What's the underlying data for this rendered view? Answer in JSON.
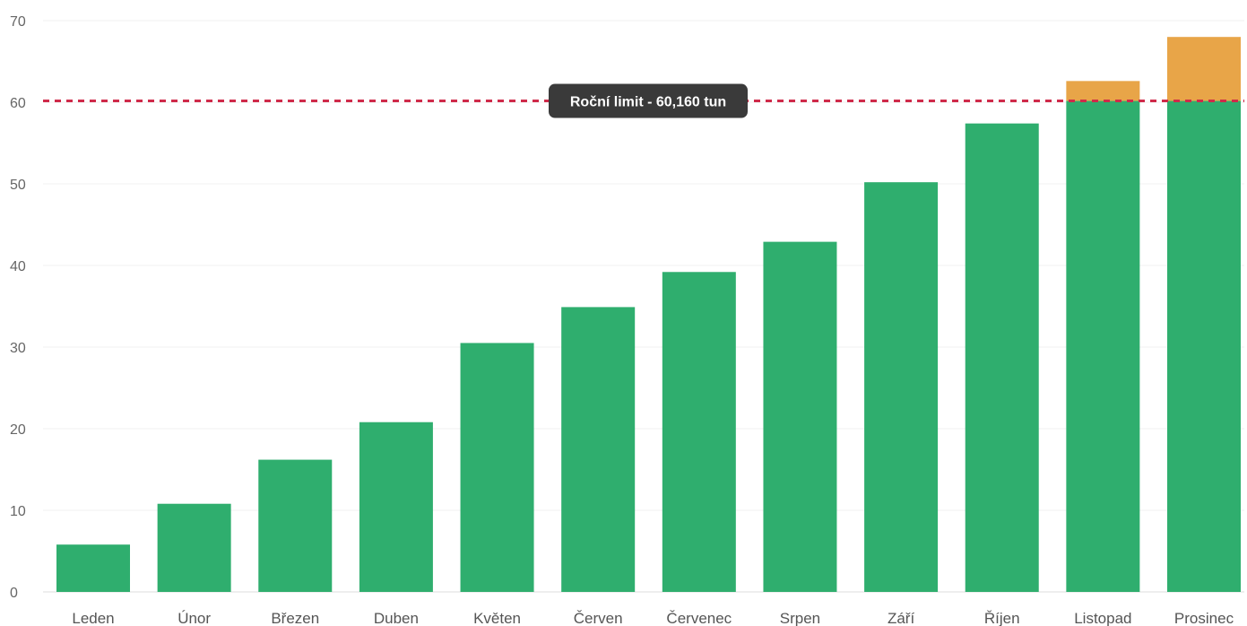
{
  "chart_data": {
    "type": "bar",
    "stacked": true,
    "categories": [
      "Leden",
      "Únor",
      "Březen",
      "Duben",
      "Květen",
      "Červen",
      "Červenec",
      "Srpen",
      "Září",
      "Říjen",
      "Listopad",
      "Prosinec"
    ],
    "series": [
      {
        "color": "#2fae6e",
        "values": [
          5.8,
          10.8,
          16.2,
          20.8,
          30.5,
          34.9,
          39.2,
          42.9,
          50.2,
          57.4,
          60.16,
          60.16
        ]
      },
      {
        "color": "#e8a548",
        "values": [
          0,
          0,
          0,
          0,
          0,
          0,
          0,
          0,
          0,
          0,
          2.44,
          7.84
        ]
      }
    ],
    "ylim": [
      0,
      70
    ],
    "yticks": [
      0,
      10,
      20,
      30,
      40,
      50,
      60,
      70
    ],
    "grid": true,
    "limit_line": {
      "value": 60.16,
      "label": "Roční limit - 60,160 tun",
      "color": "#cf2a4a"
    }
  }
}
